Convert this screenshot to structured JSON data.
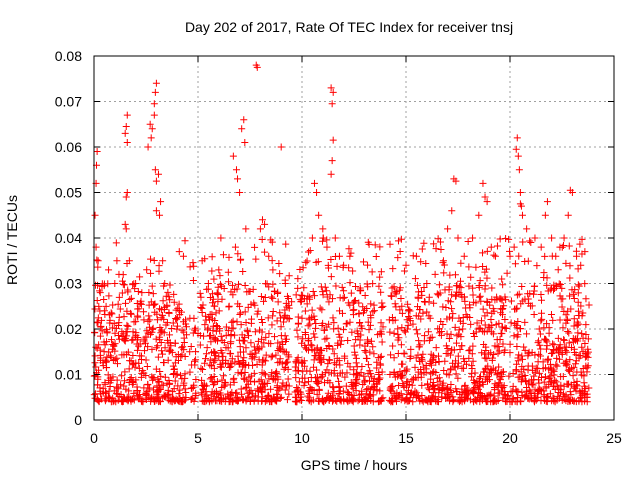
{
  "chart_data": {
    "type": "scatter",
    "title": "Day 202 of 2017, Rate Of TEC Index for receiver tnsj",
    "xlabel": "GPS time / hours",
    "ylabel": "ROTI / TECUs",
    "xlim": [
      0,
      25
    ],
    "ylim": [
      0,
      0.08
    ],
    "x_ticks": [
      0,
      5,
      10,
      15,
      20,
      25
    ],
    "x_tick_labels": [
      "0",
      "5",
      "10",
      "15",
      "20",
      "25"
    ],
    "y_ticks": [
      0,
      0.01,
      0.02,
      0.03,
      0.04,
      0.05,
      0.06,
      0.07,
      0.08
    ],
    "y_tick_labels": [
      "0",
      "0.01",
      "0.02",
      "0.03",
      "0.04",
      "0.05",
      "0.06",
      "0.07",
      "0.08"
    ],
    "grid": true,
    "marker": "+",
    "marker_color": "#ff0000",
    "series": [
      {
        "name": "ROTI",
        "points": [
          [
            0.05,
            0.045
          ],
          [
            0.1,
            0.052
          ],
          [
            0.12,
            0.056
          ],
          [
            0.15,
            0.059
          ],
          [
            0.1,
            0.038
          ],
          [
            0.2,
            0.035
          ],
          [
            0.3,
            0.028
          ],
          [
            0.5,
            0.024
          ],
          [
            0.7,
            0.033
          ],
          [
            1.0,
            0.03
          ],
          [
            1.2,
            0.032
          ],
          [
            1.5,
            0.043
          ],
          [
            1.55,
            0.049
          ],
          [
            1.6,
            0.05
          ],
          [
            1.55,
            0.042
          ],
          [
            1.7,
            0.035
          ],
          [
            1.5,
            0.063
          ],
          [
            1.6,
            0.067
          ],
          [
            1.55,
            0.0645
          ],
          [
            1.6,
            0.061
          ],
          [
            2.0,
            0.03
          ],
          [
            2.3,
            0.028
          ],
          [
            2.4,
            0.022
          ],
          [
            2.6,
            0.06
          ],
          [
            2.7,
            0.065
          ],
          [
            2.75,
            0.062
          ],
          [
            2.8,
            0.064
          ],
          [
            2.9,
            0.067
          ],
          [
            2.95,
            0.072
          ],
          [
            3.0,
            0.074
          ],
          [
            2.9,
            0.0695
          ],
          [
            3.0,
            0.0525
          ],
          [
            2.95,
            0.055
          ],
          [
            3.1,
            0.054
          ],
          [
            3.2,
            0.048
          ],
          [
            3.15,
            0.045
          ],
          [
            3.0,
            0.046
          ],
          [
            3.3,
            0.035
          ],
          [
            3.4,
            0.03
          ],
          [
            3.5,
            0.025
          ],
          [
            4.1,
            0.037
          ],
          [
            4.3,
            0.036
          ],
          [
            4.4,
            0.022
          ],
          [
            4.6,
            0.015
          ],
          [
            5.0,
            0.019
          ],
          [
            5.2,
            0.035
          ],
          [
            5.5,
            0.03
          ],
          [
            5.8,
            0.025
          ],
          [
            6.0,
            0.033
          ],
          [
            6.1,
            0.04
          ],
          [
            6.5,
            0.025
          ],
          [
            6.8,
            0.038
          ],
          [
            6.7,
            0.058
          ],
          [
            6.85,
            0.055
          ],
          [
            6.9,
            0.053
          ],
          [
            7.0,
            0.05
          ],
          [
            7.1,
            0.064
          ],
          [
            7.2,
            0.066
          ],
          [
            7.25,
            0.061
          ],
          [
            7.3,
            0.042
          ],
          [
            7.8,
            0.078
          ],
          [
            7.85,
            0.0775
          ],
          [
            8.0,
            0.042
          ],
          [
            8.1,
            0.044
          ],
          [
            8.2,
            0.043
          ],
          [
            8.4,
            0.036
          ],
          [
            8.6,
            0.033
          ],
          [
            9.0,
            0.06
          ],
          [
            9.2,
            0.03
          ],
          [
            9.5,
            0.026
          ],
          [
            10.5,
            0.04
          ],
          [
            10.6,
            0.052
          ],
          [
            10.7,
            0.05
          ],
          [
            10.8,
            0.045
          ],
          [
            11.0,
            0.042
          ],
          [
            11.2,
            0.038
          ],
          [
            11.4,
            0.073
          ],
          [
            11.5,
            0.072
          ],
          [
            11.45,
            0.0695
          ],
          [
            11.5,
            0.0615
          ],
          [
            11.45,
            0.057
          ],
          [
            11.4,
            0.054
          ],
          [
            11.6,
            0.04
          ],
          [
            11.8,
            0.036
          ],
          [
            12.0,
            0.034
          ],
          [
            12.3,
            0.036
          ],
          [
            12.8,
            0.029
          ],
          [
            13.3,
            0.023
          ],
          [
            14.2,
            0.022
          ],
          [
            15.0,
            0.034
          ],
          [
            15.5,
            0.036
          ],
          [
            16.0,
            0.03
          ],
          [
            16.4,
            0.032
          ],
          [
            16.8,
            0.035
          ],
          [
            17.0,
            0.042
          ],
          [
            17.3,
            0.053
          ],
          [
            17.4,
            0.0525
          ],
          [
            17.2,
            0.046
          ],
          [
            17.5,
            0.04
          ],
          [
            17.8,
            0.036
          ],
          [
            18.2,
            0.04
          ],
          [
            18.5,
            0.045
          ],
          [
            18.7,
            0.052
          ],
          [
            18.8,
            0.049
          ],
          [
            18.9,
            0.048
          ],
          [
            19.1,
            0.038
          ],
          [
            19.3,
            0.036
          ],
          [
            19.6,
            0.031
          ],
          [
            20.0,
            0.036
          ],
          [
            20.2,
            0.038
          ],
          [
            20.3,
            0.0595
          ],
          [
            20.35,
            0.062
          ],
          [
            20.4,
            0.058
          ],
          [
            20.45,
            0.055
          ],
          [
            20.5,
            0.0475
          ],
          [
            20.55,
            0.047
          ],
          [
            20.6,
            0.045
          ],
          [
            20.5,
            0.05
          ],
          [
            20.8,
            0.042
          ],
          [
            21.0,
            0.039
          ],
          [
            21.2,
            0.04
          ],
          [
            21.5,
            0.038
          ],
          [
            21.7,
            0.045
          ],
          [
            21.8,
            0.048
          ],
          [
            22.0,
            0.04
          ],
          [
            22.2,
            0.036
          ],
          [
            22.4,
            0.038
          ],
          [
            22.6,
            0.04
          ],
          [
            22.8,
            0.045
          ],
          [
            22.9,
            0.0505
          ],
          [
            23.0,
            0.05
          ],
          [
            23.2,
            0.036
          ],
          [
            23.4,
            0.034
          ],
          [
            23.6,
            0.037
          ]
        ],
        "dense_band": {
          "coverage_hours": [
            [
              0,
              4.9
            ],
            [
              5.1,
              9.4
            ],
            [
              9.6,
              13.9
            ],
            [
              14.2,
              23.8
            ]
          ],
          "gaps_hours": [
            [
              4.45,
              4.6
            ],
            [
              9.45,
              9.65
            ],
            [
              13.9,
              14.2
            ]
          ],
          "typical_range": [
            0.004,
            0.03
          ]
        }
      }
    ]
  }
}
